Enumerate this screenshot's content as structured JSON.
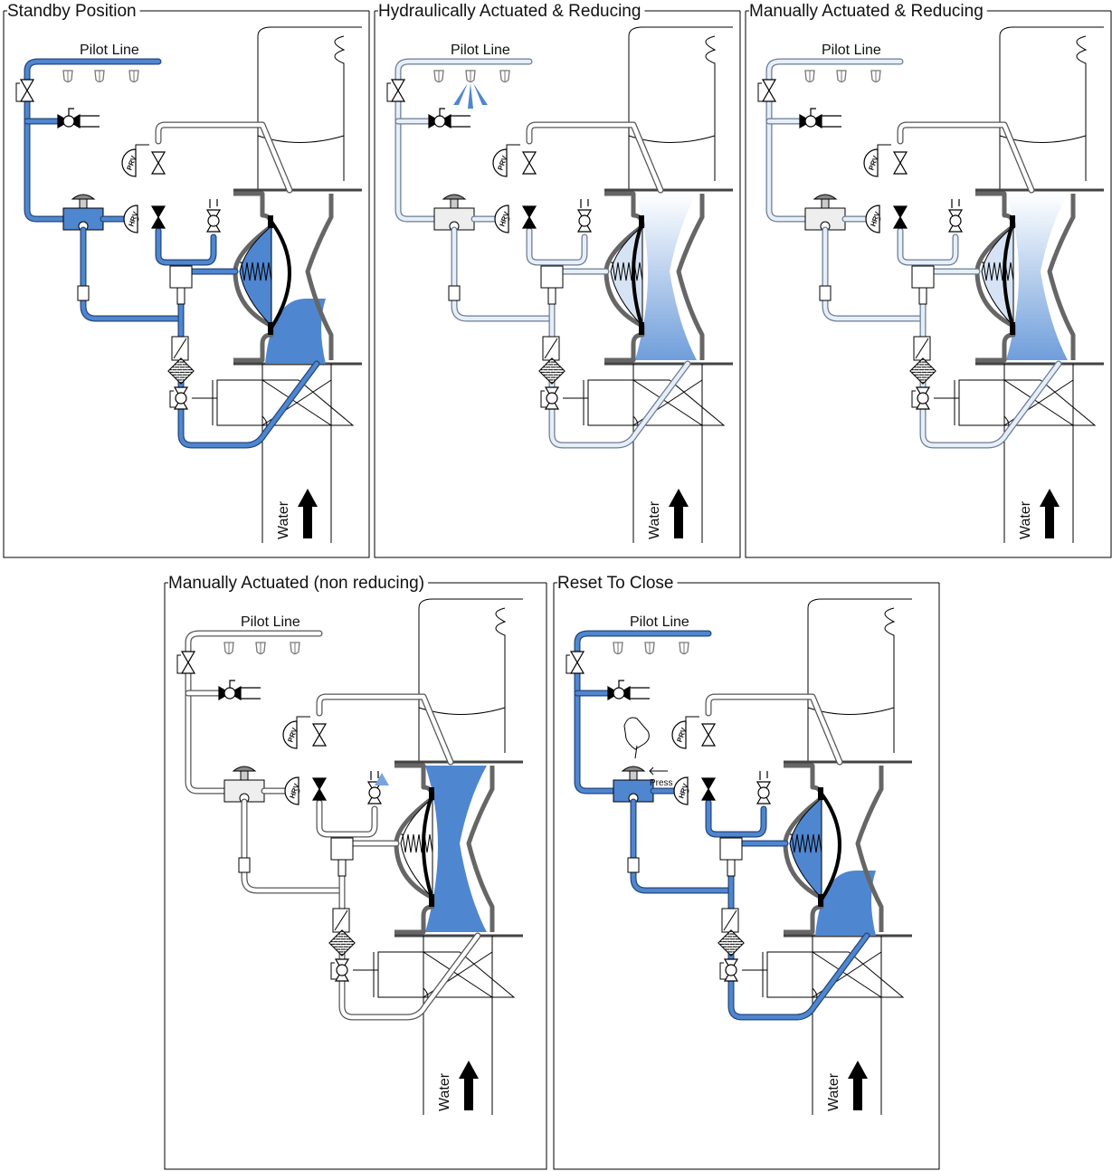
{
  "colors": {
    "water": "#4f86d0",
    "water_light": "#c5d7ef",
    "pipe_empty_outline": "#555555",
    "pipe_pale_fill": "#e6eef8",
    "body_outline": "#666666",
    "frame": "#000000"
  },
  "labels": {
    "pilot_line": "Pilot Line",
    "water": "Water",
    "prv": "PRV",
    "hrv": "HRV",
    "press": "Press"
  },
  "panels": [
    {
      "id": "standby",
      "title": "Standby Position",
      "pilot": "full",
      "main": "full",
      "chamber": "full",
      "valve_body": "closed"
    },
    {
      "id": "hydraulic",
      "title": "Hydraulically Actuated & Reducing",
      "pilot": "light",
      "main": "light",
      "chamber": "light",
      "valve_body": "open_light"
    },
    {
      "id": "manual-reducing",
      "title": "Manually Actuated & Reducing",
      "pilot": "light",
      "main": "light",
      "chamber": "light",
      "valve_body": "open_light"
    },
    {
      "id": "manual-nonreducing",
      "title": "Manually Actuated (non reducing)",
      "pilot": "empty",
      "main": "partial",
      "chamber": "empty",
      "valve_body": "open_full"
    },
    {
      "id": "reset",
      "title": "Reset To Close",
      "pilot": "full",
      "main": "full",
      "chamber": "full",
      "valve_body": "closed"
    }
  ]
}
